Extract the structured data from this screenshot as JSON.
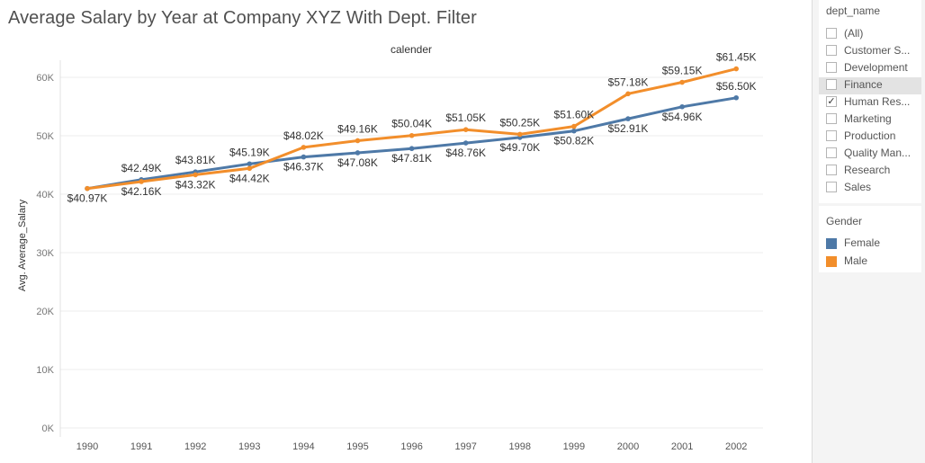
{
  "title": "Average Salary by Year at Company XYZ With Dept. Filter",
  "chart_data": {
    "type": "line",
    "column_header": "calender",
    "ylabel": "Avg. Average_Salary",
    "xlabel": "",
    "ylim": [
      0,
      65000
    ],
    "yticks": [
      0,
      10000,
      20000,
      30000,
      40000,
      50000,
      60000
    ],
    "ytick_labels": [
      "0K",
      "10K",
      "20K",
      "30K",
      "40K",
      "50K",
      "60K"
    ],
    "grid": "horizontal",
    "categories": [
      "1990",
      "1991",
      "1992",
      "1993",
      "1994",
      "1995",
      "1996",
      "1997",
      "1998",
      "1999",
      "2000",
      "2001",
      "2002"
    ],
    "series": [
      {
        "name": "Female",
        "color": "#4e79a7",
        "values": [
          40970,
          42490,
          43810,
          45190,
          46370,
          47080,
          47810,
          48760,
          49700,
          50820,
          52910,
          54960,
          56500
        ],
        "labels": [
          "$40.97K",
          "$42.49K",
          "$43.81K",
          "$45.19K",
          "$46.37K",
          "$47.08K",
          "$47.81K",
          "$48.76K",
          "$49.70K",
          "$50.82K",
          "$52.91K",
          "$54.96K",
          "$56.50K"
        ],
        "label_pos": [
          "below",
          "above",
          "above",
          "above",
          "below",
          "below",
          "below",
          "below",
          "below",
          "below",
          "below",
          "below",
          "above"
        ]
      },
      {
        "name": "Male",
        "color": "#f28e2b",
        "values": [
          40970,
          42160,
          43320,
          44420,
          48020,
          49160,
          50040,
          51050,
          50250,
          51600,
          57180,
          59150,
          61450
        ],
        "labels": [
          "",
          "$42.16K",
          "$43.32K",
          "$44.42K",
          "$48.02K",
          "$49.16K",
          "$50.04K",
          "$51.05K",
          "$50.25K",
          "$51.60K",
          "$57.18K",
          "$59.15K",
          "$61.45K"
        ],
        "label_pos": [
          "below",
          "below",
          "below",
          "below",
          "above",
          "above",
          "above",
          "above",
          "above",
          "above",
          "above",
          "above",
          "above"
        ]
      }
    ]
  },
  "filter": {
    "title": "dept_name",
    "items": [
      {
        "label": "(All)",
        "checked": false,
        "highlight": false
      },
      {
        "label": "Customer S...",
        "checked": false,
        "highlight": false
      },
      {
        "label": "Development",
        "checked": false,
        "highlight": false
      },
      {
        "label": "Finance",
        "checked": false,
        "highlight": true
      },
      {
        "label": "Human Res...",
        "checked": true,
        "highlight": false
      },
      {
        "label": "Marketing",
        "checked": false,
        "highlight": false
      },
      {
        "label": "Production",
        "checked": false,
        "highlight": false
      },
      {
        "label": "Quality Man...",
        "checked": false,
        "highlight": false
      },
      {
        "label": "Research",
        "checked": false,
        "highlight": false
      },
      {
        "label": "Sales",
        "checked": false,
        "highlight": false
      }
    ]
  },
  "legend": {
    "title": "Gender",
    "items": [
      {
        "label": "Female",
        "color": "#4e79a7"
      },
      {
        "label": "Male",
        "color": "#f28e2b"
      }
    ]
  }
}
